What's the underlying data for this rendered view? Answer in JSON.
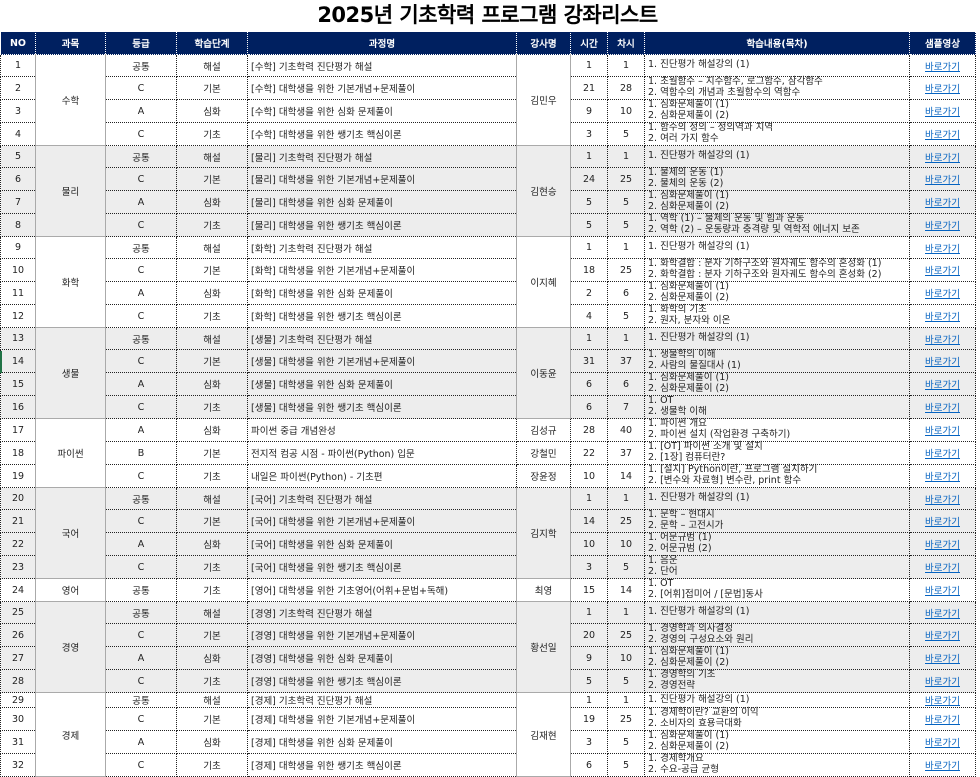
{
  "title": "2025년 기초학력 프로그램 강좌리스트",
  "colors": {
    "header_bg": "#002060",
    "header_text": "#ffffff",
    "shade": "#ededed",
    "link": "#0563c1"
  },
  "headers": [
    "NO",
    "과목",
    "등급",
    "학습단계",
    "과정명",
    "강사명",
    "시간",
    "차시",
    "학습내용(목차)",
    "샘플영상"
  ],
  "link_label": "바로가기",
  "groups": [
    {
      "subject": "수학",
      "instructor": "김민우",
      "shaded": false,
      "rows": [
        {
          "no": "1",
          "grade": "공통",
          "stage": "해설",
          "course": "[수학] 기초학력 진단평가 해설",
          "hours": "1",
          "sessions": "1",
          "contents": [
            "1. 진단평가 해설강의 (1)"
          ]
        },
        {
          "no": "2",
          "grade": "C",
          "stage": "기본",
          "course": "[수학] 대학생을 위한 기본개념+문제풀이",
          "hours": "21",
          "sessions": "28",
          "contents": [
            "1. 초월함수 – 지수함수, 로그함수, 삼각함수",
            "2. 역함수의 개념과 초월함수의 역함수"
          ]
        },
        {
          "no": "3",
          "grade": "A",
          "stage": "심화",
          "course": "[수학] 대학생을 위한 심화 문제풀이",
          "hours": "9",
          "sessions": "10",
          "contents": [
            "1. 심화문제풀이 (1)",
            "2. 심화문제풀이 (2)"
          ]
        },
        {
          "no": "4",
          "grade": "C",
          "stage": "기초",
          "course": "[수학] 대학생을 위한 쌩기초 핵심이론",
          "hours": "3",
          "sessions": "5",
          "contents": [
            "1. 함수의 정의 – 정의역과 치역",
            "2. 여러 가지 함수"
          ]
        }
      ]
    },
    {
      "subject": "물리",
      "instructor": "김현승",
      "shaded": true,
      "rows": [
        {
          "no": "5",
          "grade": "공통",
          "stage": "해설",
          "course": "[물리] 기초학력 진단평가 해설",
          "hours": "1",
          "sessions": "1",
          "contents": [
            "1. 진단평가 해설강의 (1)"
          ]
        },
        {
          "no": "6",
          "grade": "C",
          "stage": "기본",
          "course": "[물리] 대학생을 위한 기본개념+문제풀이",
          "hours": "24",
          "sessions": "25",
          "contents": [
            "1. 물체의 운동 (1)",
            "2. 물체의 운동 (2)"
          ]
        },
        {
          "no": "7",
          "grade": "A",
          "stage": "심화",
          "course": "[물리] 대학생을 위한 심화 문제풀이",
          "hours": "5",
          "sessions": "5",
          "contents": [
            "1. 심화문제풀이 (1)",
            "2. 심화문제풀이 (2)"
          ]
        },
        {
          "no": "8",
          "grade": "C",
          "stage": "기초",
          "course": "[물리] 대학생을 위한 쌩기초 핵심이론",
          "hours": "5",
          "sessions": "5",
          "contents": [
            "1. 역학 (1) – 물체의 운동 및 힘과 운동",
            "2. 역학 (2) – 운동량과 충격량 및 역학적 에너지 보존"
          ]
        }
      ]
    },
    {
      "subject": "화학",
      "instructor": "이지혜",
      "shaded": false,
      "rows": [
        {
          "no": "9",
          "grade": "공통",
          "stage": "해설",
          "course": "[화학] 기초학력 진단평가 해설",
          "hours": "1",
          "sessions": "1",
          "contents": [
            "1. 진단평가 해설강의 (1)"
          ]
        },
        {
          "no": "10",
          "grade": "C",
          "stage": "기본",
          "course": "[화학] 대학생을 위한 기본개념+문제풀이",
          "hours": "18",
          "sessions": "25",
          "contents": [
            "1. 화학결합 : 분자 기하구조와 원자궤도 함수의 혼성화 (1)",
            "2. 화학결합 : 분자 기하구조와 원자궤도 함수의 혼성화 (2)"
          ]
        },
        {
          "no": "11",
          "grade": "A",
          "stage": "심화",
          "course": "[화학] 대학생을 위한 심화 문제풀이",
          "hours": "2",
          "sessions": "6",
          "contents": [
            "1. 심화문제풀이 (1)",
            "2. 심화문제풀이 (2)"
          ]
        },
        {
          "no": "12",
          "grade": "C",
          "stage": "기초",
          "course": "[화학] 대학생을 위한 쌩기초 핵심이론",
          "hours": "4",
          "sessions": "5",
          "contents": [
            "1. 화학의 기초",
            "2. 원자, 분자와 이온"
          ]
        }
      ]
    },
    {
      "subject": "생물",
      "instructor": "이동윤",
      "shaded": true,
      "rows": [
        {
          "no": "13",
          "grade": "공통",
          "stage": "해설",
          "course": "[생물] 기초학력 진단평가 해설",
          "hours": "1",
          "sessions": "1",
          "contents": [
            "1. 진단평가 해설강의 (1)"
          ]
        },
        {
          "no": "14",
          "grade": "C",
          "stage": "기본",
          "course": "[생물] 대학생을 위한 기본개념+문제풀이",
          "hours": "31",
          "sessions": "37",
          "contents": [
            "1. 생물학의 이해",
            "2. 사람의 물질대사 (1)"
          ]
        },
        {
          "no": "15",
          "grade": "A",
          "stage": "심화",
          "course": "[생물] 대학생을 위한 심화 문제풀이",
          "hours": "6",
          "sessions": "6",
          "contents": [
            "1. 심화문제풀이 (1)",
            "2. 심화문제풀이 (2)"
          ]
        },
        {
          "no": "16",
          "grade": "C",
          "stage": "기초",
          "course": "[생물] 대학생을 위한 쌩기초 핵심이론",
          "hours": "6",
          "sessions": "7",
          "contents": [
            "1. OT",
            "2. 생물학 이해"
          ]
        }
      ]
    },
    {
      "subject": "파이썬",
      "instructor": "",
      "shaded": false,
      "rows": [
        {
          "no": "17",
          "grade": "A",
          "stage": "심화",
          "course": "파이썬 중급 개념완성",
          "instructor": "김성규",
          "hours": "28",
          "sessions": "40",
          "contents": [
            "1. 파이썬 개요",
            "2. 파이썬 설치 (작업환경 구축하기)"
          ]
        },
        {
          "no": "18",
          "grade": "B",
          "stage": "기본",
          "course": "전지적 컴공 시점 - 파이썬(Python) 입문",
          "instructor": "강철민",
          "hours": "22",
          "sessions": "37",
          "contents": [
            "1. [OT] 파이썬 소개 및 설치",
            "2. [1장] 컴퓨터란?"
          ]
        },
        {
          "no": "19",
          "grade": "C",
          "stage": "기초",
          "course": "내일은 파이썬(Python) - 기초편",
          "instructor": "장윤정",
          "hours": "10",
          "sessions": "14",
          "contents": [
            "1. [설치] Python이란, 프로그램 설치하기",
            "2. [변수와 자료형] 변수란, print 함수"
          ]
        }
      ]
    },
    {
      "subject": "국어",
      "instructor": "김지학",
      "shaded": true,
      "rows": [
        {
          "no": "20",
          "grade": "공통",
          "stage": "해설",
          "course": "[국어] 기초학력 진단평가 해설",
          "hours": "1",
          "sessions": "1",
          "contents": [
            "1. 진단평가 해설강의 (1)"
          ]
        },
        {
          "no": "21",
          "grade": "C",
          "stage": "기본",
          "course": "[국어] 대학생을 위한 기본개념+문제풀이",
          "hours": "14",
          "sessions": "25",
          "contents": [
            "1. 문학 – 현대시",
            "2. 문학 – 고전시가"
          ]
        },
        {
          "no": "22",
          "grade": "A",
          "stage": "심화",
          "course": "[국어] 대학생을 위한 심화 문제풀이",
          "hours": "10",
          "sessions": "10",
          "contents": [
            "1. 어문규범 (1)",
            "2. 어문규범 (2)"
          ]
        },
        {
          "no": "23",
          "grade": "C",
          "stage": "기초",
          "course": "[국어] 대학생을 위한 쌩기초 핵심이론",
          "hours": "3",
          "sessions": "5",
          "contents": [
            "1. 음운",
            "2. 단어"
          ]
        }
      ]
    },
    {
      "subject": "영어",
      "instructor": "최영",
      "shaded": false,
      "rows": [
        {
          "no": "24",
          "grade": "공통",
          "stage": "기초",
          "course": "[영어] 대학생을 위한 기초영어(어휘+문법+독해)",
          "hours": "15",
          "sessions": "14",
          "contents": [
            "1. OT",
            "2. [어휘]접미어 / [문법]동사"
          ]
        }
      ]
    },
    {
      "subject": "경영",
      "instructor": "황선일",
      "shaded": true,
      "rows": [
        {
          "no": "25",
          "grade": "공통",
          "stage": "해설",
          "course": "[경영] 기초학력 진단평가 해설",
          "hours": "1",
          "sessions": "1",
          "contents": [
            "1. 진단평가 해설강의 (1)"
          ]
        },
        {
          "no": "26",
          "grade": "C",
          "stage": "기본",
          "course": "[경영] 대학생을 위한 기본개념+문제풀이",
          "hours": "20",
          "sessions": "25",
          "contents": [
            "1. 경영학과 의사결정",
            "2. 경영의 구성요소와 원리"
          ]
        },
        {
          "no": "27",
          "grade": "A",
          "stage": "심화",
          "course": "[경영] 대학생을 위한 심화 문제풀이",
          "hours": "9",
          "sessions": "10",
          "contents": [
            "1. 심화문제풀이 (1)",
            "2. 심화문제풀이 (2)"
          ]
        },
        {
          "no": "28",
          "grade": "C",
          "stage": "기초",
          "course": "[경영] 대학생을 위한 쌩기초 핵심이론",
          "hours": "5",
          "sessions": "5",
          "contents": [
            "1. 경영학의 기초",
            "2. 경영전략"
          ]
        }
      ]
    },
    {
      "subject": "경제",
      "instructor": "김재현",
      "shaded": false,
      "rows": [
        {
          "no": "29",
          "grade": "공통",
          "stage": "해설",
          "course": "[경제] 기초학력 진단평가 해설",
          "hours": "1",
          "sessions": "1",
          "contents": [
            "1. 진단평가 해설강의 (1)"
          ]
        },
        {
          "no": "30",
          "grade": "C",
          "stage": "기본",
          "course": "[경제] 대학생을 위한 기본개념+문제풀이",
          "hours": "19",
          "sessions": "25",
          "contents": [
            "1. 경제학이란? 교환의 이익",
            "2. 소비자의 효용극대화"
          ]
        },
        {
          "no": "31",
          "grade": "A",
          "stage": "심화",
          "course": "[경제] 대학생을 위한 심화 문제풀이",
          "hours": "3",
          "sessions": "5",
          "contents": [
            "1. 심화문제풀이 (1)",
            "2. 심화문제풀이 (2)"
          ]
        },
        {
          "no": "32",
          "grade": "C",
          "stage": "기초",
          "course": "[경제] 대학생을 위한 쌩기초 핵심이론",
          "hours": "6",
          "sessions": "5",
          "contents": [
            "1. 경제학개요",
            "2. 수요-공급 균형"
          ]
        }
      ]
    }
  ]
}
